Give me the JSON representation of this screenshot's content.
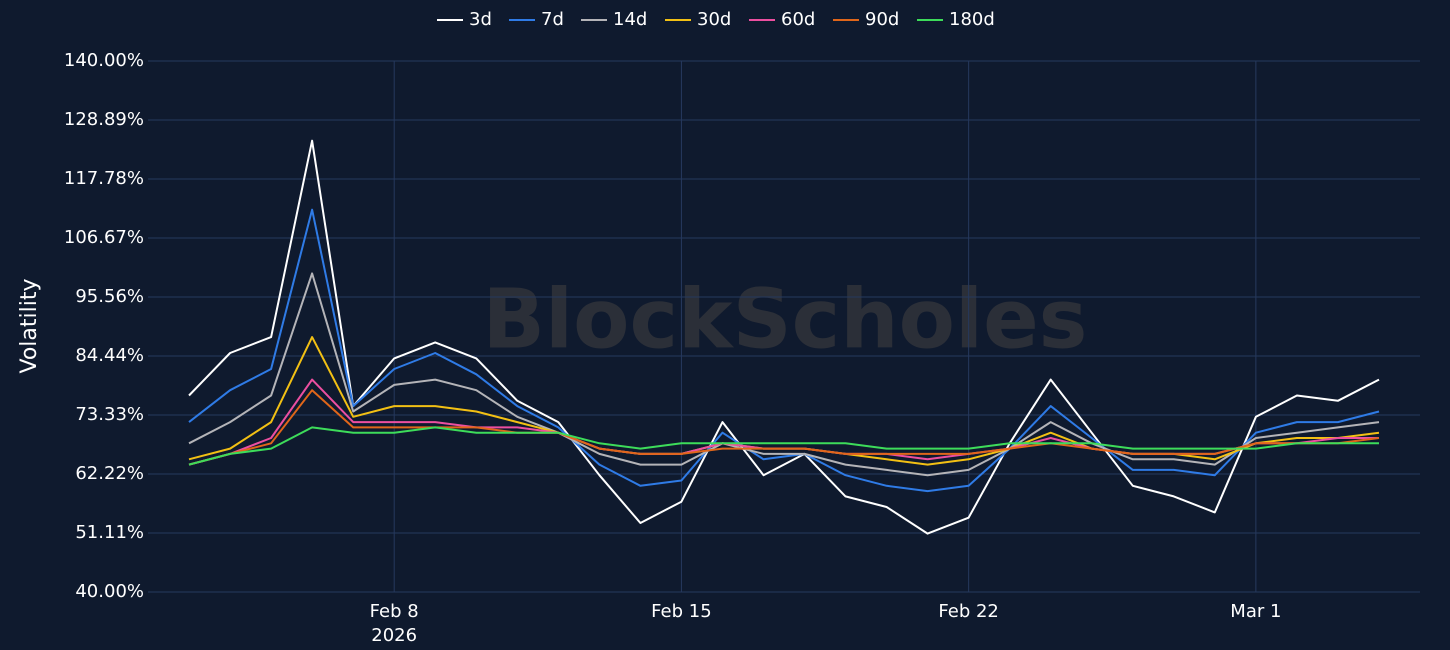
{
  "chart_data": {
    "type": "line",
    "watermark": "BlockScholes",
    "y_label": "Volatility",
    "x": [
      "2026-02-03",
      "2026-02-04",
      "2026-02-05",
      "2026-02-06",
      "2026-02-07",
      "2026-02-08",
      "2026-02-09",
      "2026-02-10",
      "2026-02-11",
      "2026-02-12",
      "2026-02-13",
      "2026-02-14",
      "2026-02-15",
      "2026-02-16",
      "2026-02-17",
      "2026-02-18",
      "2026-02-19",
      "2026-02-20",
      "2026-02-21",
      "2026-02-22",
      "2026-02-23",
      "2026-02-24",
      "2026-02-25",
      "2026-02-26",
      "2026-02-27",
      "2026-02-28",
      "2026-03-01",
      "2026-03-02",
      "2026-03-03",
      "2026-03-04"
    ],
    "xlim": [
      "2026-02-02",
      "2026-03-05"
    ],
    "xticks": [
      {
        "value": "2026-02-08",
        "label": "Feb 8\n2026"
      },
      {
        "value": "2026-02-15",
        "label": "Feb 15"
      },
      {
        "value": "2026-02-22",
        "label": "Feb 22"
      },
      {
        "value": "2026-03-01",
        "label": "Mar 1"
      }
    ],
    "ylim": [
      40,
      140
    ],
    "yticks": [
      {
        "value": 40,
        "label": "40.00%"
      },
      {
        "value": 51.11,
        "label": "51.11%"
      },
      {
        "value": 62.22,
        "label": "62.22%"
      },
      {
        "value": 73.33,
        "label": "73.33%"
      },
      {
        "value": 84.44,
        "label": "84.44%"
      },
      {
        "value": 95.56,
        "label": "95.56%"
      },
      {
        "value": 106.67,
        "label": "106.67%"
      },
      {
        "value": 117.78,
        "label": "117.78%"
      },
      {
        "value": 128.89,
        "label": "128.89%"
      },
      {
        "value": 140,
        "label": "140.00%"
      }
    ],
    "grid": true,
    "legend": "top",
    "series": [
      {
        "name": "3d",
        "color": "#ffffff",
        "values": [
          77,
          85,
          88,
          125,
          75,
          84,
          87,
          84,
          76,
          72,
          62,
          53,
          57,
          72,
          62,
          66,
          58,
          56,
          51,
          54,
          68,
          80,
          70,
          60,
          58,
          55,
          73,
          77,
          76,
          80
        ]
      },
      {
        "name": "7d",
        "color": "#2f7be6",
        "values": [
          72,
          78,
          82,
          112,
          75,
          82,
          85,
          81,
          75,
          71,
          64,
          60,
          61,
          70,
          65,
          66,
          62,
          60,
          59,
          60,
          67,
          75,
          69,
          63,
          63,
          62,
          70,
          72,
          72,
          74
        ]
      },
      {
        "name": "14d",
        "color": "#b4b4b8",
        "values": [
          68,
          72,
          77,
          100,
          74,
          79,
          80,
          78,
          73,
          70,
          66,
          64,
          64,
          68,
          66,
          66,
          64,
          63,
          62,
          63,
          67,
          72,
          68,
          65,
          65,
          64,
          69,
          70,
          71,
          72
        ]
      },
      {
        "name": "30d",
        "color": "#f2c014",
        "values": [
          65,
          67,
          72,
          88,
          73,
          75,
          75,
          74,
          72,
          70,
          67,
          66,
          66,
          68,
          67,
          67,
          66,
          65,
          64,
          65,
          67,
          70,
          67,
          66,
          66,
          65,
          68,
          69,
          69,
          70
        ]
      },
      {
        "name": "60d",
        "color": "#ec4fa0",
        "values": [
          64,
          66,
          69,
          80,
          72,
          72,
          72,
          71,
          71,
          70,
          67,
          66,
          66,
          68,
          67,
          67,
          66,
          66,
          65,
          66,
          67,
          69,
          67,
          66,
          66,
          66,
          68,
          68,
          69,
          69
        ]
      },
      {
        "name": "90d",
        "color": "#e0661a",
        "values": [
          64,
          66,
          68,
          78,
          71,
          71,
          71,
          71,
          70,
          70,
          67,
          66,
          66,
          67,
          67,
          67,
          66,
          66,
          66,
          66,
          67,
          68,
          67,
          66,
          66,
          66,
          68,
          68,
          68,
          69
        ]
      },
      {
        "name": "180d",
        "color": "#3ddc5a",
        "values": [
          64,
          66,
          67,
          71,
          70,
          70,
          71,
          70,
          70,
          70,
          68,
          67,
          68,
          68,
          68,
          68,
          68,
          67,
          67,
          67,
          68,
          68,
          68,
          67,
          67,
          67,
          67,
          68,
          68,
          68
        ]
      }
    ]
  }
}
